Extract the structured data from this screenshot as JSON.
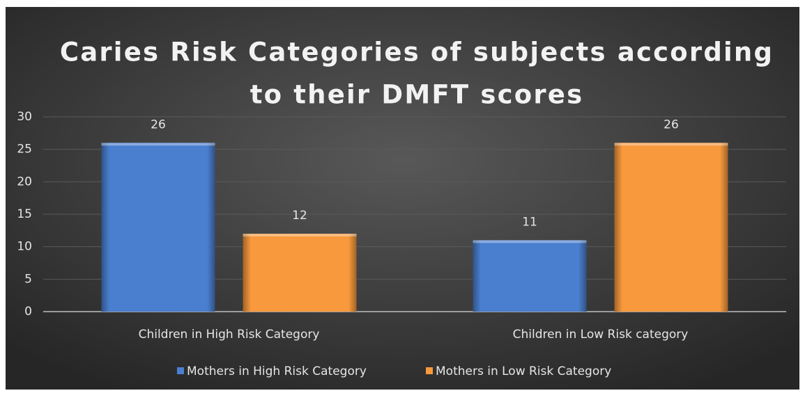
{
  "chart_data": {
    "type": "bar",
    "title": [
      "Caries Risk Categories of subjects according",
      "to their DMFT scores"
    ],
    "categories": [
      "Children in High Risk Category",
      "Children in Low Risk category"
    ],
    "series": [
      {
        "name": "Mothers in High Risk Category",
        "color": "#4a7fcf",
        "values": [
          26,
          11
        ]
      },
      {
        "name": "Mothers in Low Risk Category",
        "color": "#f7993c",
        "values": [
          12,
          26
        ]
      }
    ],
    "ylim": [
      0,
      30
    ],
    "yticks": [
      0,
      5,
      10,
      15,
      20,
      25,
      30
    ],
    "grid": true,
    "legend": "bottom"
  }
}
